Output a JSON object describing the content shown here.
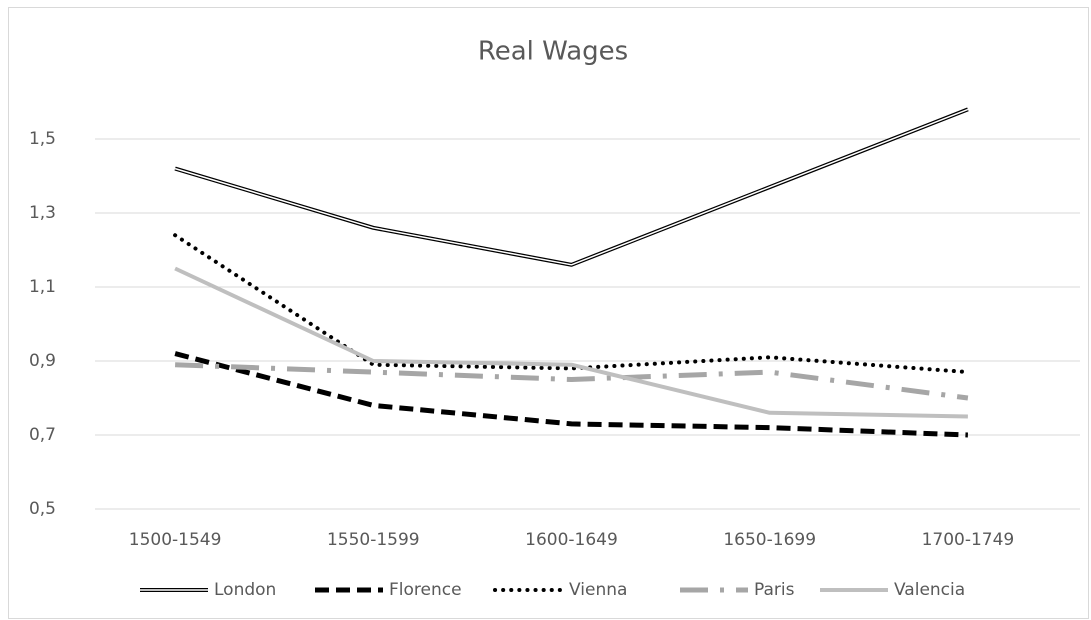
{
  "chart_data": {
    "type": "line",
    "title": "Real Wages",
    "categories": [
      "1500-1549",
      "1550-1599",
      "1600-1649",
      "1650-1699",
      "1700-1749"
    ],
    "series": [
      {
        "name": "London",
        "color": "#000000",
        "style": "double",
        "values": [
          1.42,
          1.26,
          1.16,
          1.37,
          1.58
        ]
      },
      {
        "name": "Florence",
        "color": "#000000",
        "style": "dash",
        "values": [
          0.92,
          0.78,
          0.73,
          0.72,
          0.7
        ]
      },
      {
        "name": "Vienna",
        "color": "#000000",
        "style": "dot",
        "values": [
          1.24,
          0.89,
          0.88,
          0.91,
          0.87
        ]
      },
      {
        "name": "Paris",
        "color": "#a6a6a6",
        "style": "dash-dot",
        "values": [
          0.89,
          0.87,
          0.85,
          0.87,
          0.8
        ]
      },
      {
        "name": "Valencia",
        "color": "#bfbfbf",
        "style": "solid",
        "values": [
          1.15,
          0.9,
          0.89,
          0.76,
          0.75
        ]
      }
    ],
    "ylim": [
      0.5,
      1.6
    ],
    "yticks": [
      {
        "value": 0.5,
        "label": "0,5"
      },
      {
        "value": 0.7,
        "label": "0,7"
      },
      {
        "value": 0.9,
        "label": "0,9"
      },
      {
        "value": 1.1,
        "label": "1,1"
      },
      {
        "value": 1.3,
        "label": "1,3"
      },
      {
        "value": 1.5,
        "label": "1,5"
      }
    ],
    "grid": true,
    "legend": "bottom"
  }
}
